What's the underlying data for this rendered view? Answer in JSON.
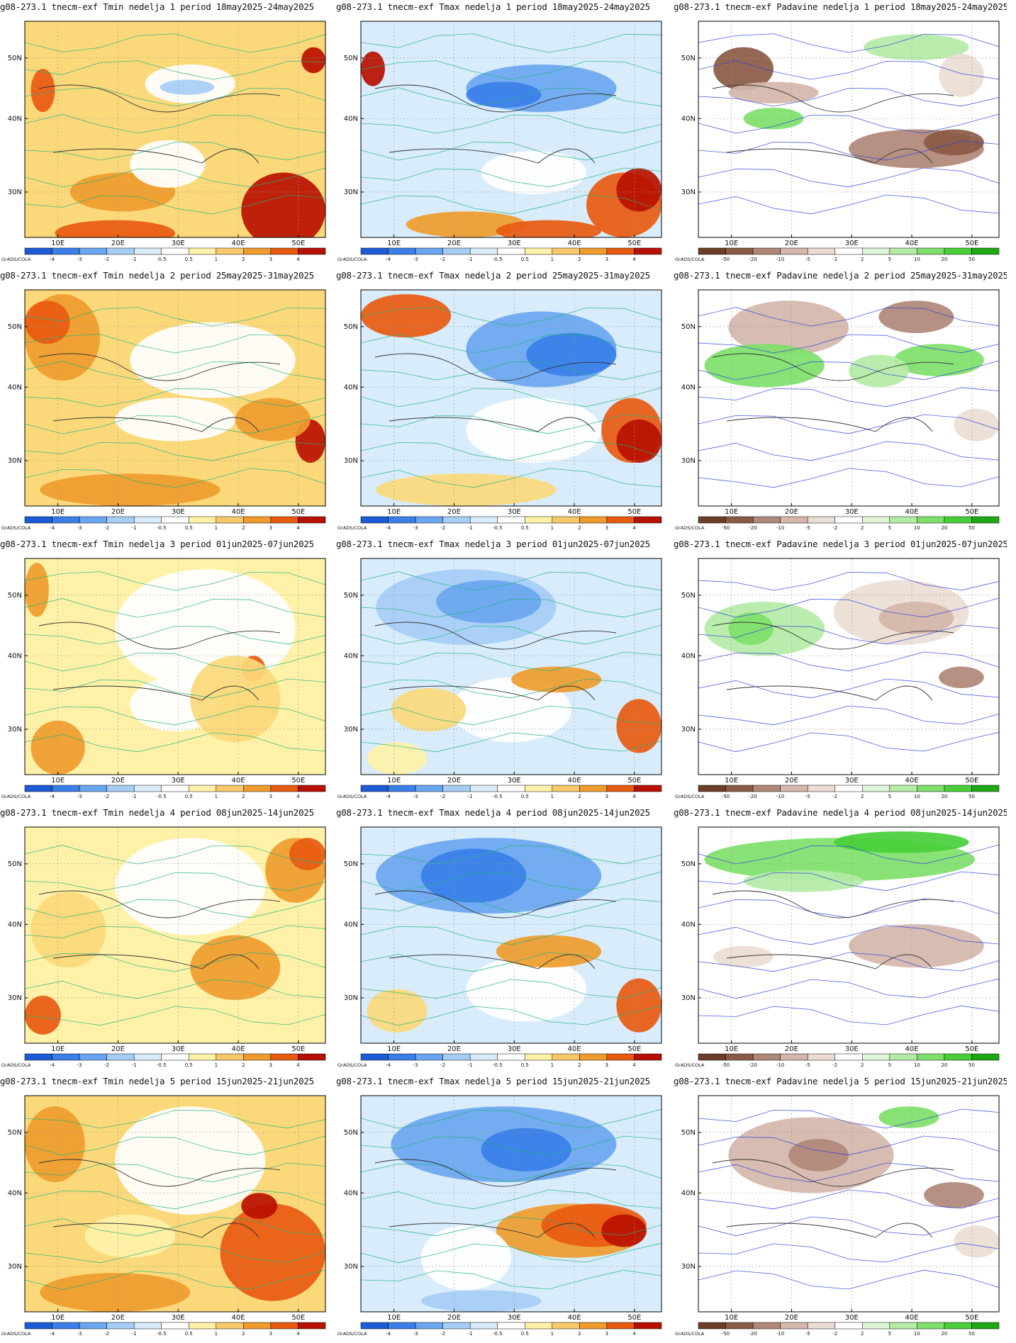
{
  "figure": {
    "credit": "GrADS/COLA",
    "lat_labels": [
      "50N",
      "40N",
      "30N"
    ],
    "lon_labels": [
      "10E",
      "20E",
      "30E",
      "40E",
      "50E"
    ],
    "temp_colorbar": {
      "labels": [
        "-4",
        "-3",
        "-2",
        "-1",
        "-0.5",
        "0.5",
        "1",
        "2",
        "3",
        "4"
      ],
      "colors": [
        "#1c5bd6",
        "#3a7fe8",
        "#6aa6f0",
        "#a6cdf6",
        "#d8ecfb",
        "#ffffff",
        "#fff2a8",
        "#f8c96a",
        "#ef9c2c",
        "#e85a10",
        "#b81000"
      ]
    },
    "precip_colorbar": {
      "labels": [
        "-50",
        "-20",
        "-10",
        "-5",
        "-2",
        "2",
        "5",
        "10",
        "20",
        "50"
      ],
      "colors": [
        "#6b3d2a",
        "#8b5a45",
        "#b08878",
        "#d4b6aa",
        "#ecddd4",
        "#ffffff",
        "#dff5d8",
        "#b4eca6",
        "#7ee06a",
        "#48cf38",
        "#1fa814"
      ]
    },
    "rows": [
      {
        "week": "1",
        "titles": [
          "g08-273.1 tnecm-exf Tmin nedelja 1 period 18may2025-24may2025",
          "g08-273.1 tnecm-exf Tmax nedelja 1 period 18may2025-24may2025",
          "g08-273.1 tnecm-exf Padavine nedelja 1 period 18may2025-24may2025"
        ],
        "maps": [
          {
            "base": "#fbd97a",
            "blobs": [
              [
                "#ef9c2c",
                0.15,
                0.7,
                0.35,
                0.18
              ],
              [
                "#e85a10",
                0.1,
                0.92,
                0.4,
                0.12
              ],
              [
                "#b81000",
                0.72,
                0.7,
                0.28,
                0.35
              ],
              [
                "#ffffff",
                0.35,
                0.55,
                0.25,
                0.22
              ],
              [
                "#ffffff",
                0.4,
                0.2,
                0.3,
                0.18
              ],
              [
                "#a6cdf6",
                0.45,
                0.27,
                0.18,
                0.07
              ],
              [
                "#e85a10",
                0.02,
                0.22,
                0.08,
                0.2
              ],
              [
                "#b81000",
                0.92,
                0.12,
                0.08,
                0.12
              ]
            ]
          },
          {
            "base": "#d8ecfb",
            "blobs": [
              [
                "#6aa6f0",
                0.35,
                0.2,
                0.5,
                0.22
              ],
              [
                "#3a7fe8",
                0.35,
                0.28,
                0.25,
                0.12
              ],
              [
                "#ffffff",
                0.4,
                0.6,
                0.35,
                0.2
              ],
              [
                "#e85a10",
                0.75,
                0.7,
                0.25,
                0.3
              ],
              [
                "#b81000",
                0.85,
                0.68,
                0.15,
                0.2
              ],
              [
                "#ef9c2c",
                0.15,
                0.88,
                0.4,
                0.12
              ],
              [
                "#b81000",
                0.0,
                0.14,
                0.08,
                0.16
              ],
              [
                "#e85a10",
                0.45,
                0.92,
                0.35,
                0.1
              ]
            ]
          },
          {
            "base": "#ffffff",
            "blobs": [
              [
                "#8b5a45",
                0.05,
                0.12,
                0.2,
                0.2
              ],
              [
                "#d4b6aa",
                0.1,
                0.28,
                0.3,
                0.1
              ],
              [
                "#b4eca6",
                0.55,
                0.06,
                0.35,
                0.12
              ],
              [
                "#7ee06a",
                0.15,
                0.4,
                0.2,
                0.1
              ],
              [
                "#b08878",
                0.5,
                0.5,
                0.45,
                0.18
              ],
              [
                "#8b5a45",
                0.75,
                0.5,
                0.2,
                0.12
              ],
              [
                "#ecddd4",
                0.8,
                0.15,
                0.15,
                0.2
              ]
            ]
          }
        ]
      },
      {
        "week": "2",
        "titles": [
          "g08-273.1 tnecm-exf Tmin nedelja 2 period 25may2025-31may2025",
          "g08-273.1 tnecm-exf Tmax nedelja 2 period 25may2025-31may2025",
          "g08-273.1 tnecm-exf Padavine nedelja 2 period 25may2025-31may2025"
        ],
        "maps": [
          {
            "base": "#fbd97a",
            "blobs": [
              [
                "#ef9c2c",
                0.0,
                0.02,
                0.25,
                0.4
              ],
              [
                "#e85a10",
                0.0,
                0.05,
                0.15,
                0.2
              ],
              [
                "#ffffff",
                0.35,
                0.15,
                0.55,
                0.35
              ],
              [
                "#ffffff",
                0.3,
                0.5,
                0.4,
                0.2
              ],
              [
                "#ef9c2c",
                0.05,
                0.85,
                0.6,
                0.15
              ],
              [
                "#b81000",
                0.9,
                0.6,
                0.1,
                0.2
              ],
              [
                "#ef9c2c",
                0.7,
                0.5,
                0.25,
                0.2
              ]
            ]
          },
          {
            "base": "#d8ecfb",
            "blobs": [
              [
                "#e85a10",
                0.0,
                0.02,
                0.3,
                0.2
              ],
              [
                "#6aa6f0",
                0.35,
                0.1,
                0.5,
                0.35
              ],
              [
                "#3a7fe8",
                0.55,
                0.2,
                0.3,
                0.2
              ],
              [
                "#ffffff",
                0.35,
                0.5,
                0.45,
                0.3
              ],
              [
                "#fbd97a",
                0.05,
                0.85,
                0.6,
                0.15
              ],
              [
                "#e85a10",
                0.8,
                0.5,
                0.2,
                0.3
              ],
              [
                "#b81000",
                0.85,
                0.6,
                0.15,
                0.2
              ]
            ]
          },
          {
            "base": "#ffffff",
            "blobs": [
              [
                "#d4b6aa",
                0.1,
                0.05,
                0.4,
                0.25
              ],
              [
                "#b08878",
                0.6,
                0.05,
                0.25,
                0.15
              ],
              [
                "#7ee06a",
                0.02,
                0.25,
                0.4,
                0.2
              ],
              [
                "#7ee06a",
                0.65,
                0.25,
                0.3,
                0.15
              ],
              [
                "#b4eca6",
                0.5,
                0.3,
                0.2,
                0.15
              ],
              [
                "#ecddd4",
                0.85,
                0.55,
                0.15,
                0.15
              ]
            ]
          }
        ]
      },
      {
        "week": "3",
        "titles": [
          "g08-273.1 tnecm-exf Tmin nedelja 3 period 01jun2025-07jun2025",
          "g08-273.1 tnecm-exf Tmax nedelja 3 period 01jun2025-07jun2025",
          "g08-273.1 tnecm-exf Padavine nedelja 3 period 01jun2025-07jun2025"
        ],
        "maps": [
          {
            "base": "#fff2a8",
            "blobs": [
              [
                "#ffffff",
                0.3,
                0.05,
                0.6,
                0.55
              ],
              [
                "#ffffff",
                0.35,
                0.55,
                0.3,
                0.25
              ],
              [
                "#ef9c2c",
                0.0,
                0.02,
                0.08,
                0.25
              ],
              [
                "#ef9c2c",
                0.02,
                0.75,
                0.18,
                0.25
              ],
              [
                "#e85a10",
                0.72,
                0.45,
                0.08,
                0.12
              ],
              [
                "#fbd97a",
                0.55,
                0.45,
                0.3,
                0.4
              ]
            ]
          },
          {
            "base": "#d8ecfb",
            "blobs": [
              [
                "#a6cdf6",
                0.05,
                0.05,
                0.6,
                0.35
              ],
              [
                "#6aa6f0",
                0.25,
                0.1,
                0.35,
                0.2
              ],
              [
                "#ffffff",
                0.3,
                0.55,
                0.4,
                0.3
              ],
              [
                "#fbd97a",
                0.1,
                0.6,
                0.25,
                0.2
              ],
              [
                "#ef9c2c",
                0.5,
                0.5,
                0.3,
                0.12
              ],
              [
                "#e85a10",
                0.85,
                0.65,
                0.15,
                0.25
              ],
              [
                "#fff2a8",
                0.02,
                0.85,
                0.2,
                0.15
              ]
            ]
          },
          {
            "base": "#ffffff",
            "blobs": [
              [
                "#b4eca6",
                0.02,
                0.2,
                0.4,
                0.25
              ],
              [
                "#7ee06a",
                0.1,
                0.25,
                0.15,
                0.15
              ],
              [
                "#ecddd4",
                0.45,
                0.1,
                0.45,
                0.3
              ],
              [
                "#d4b6aa",
                0.6,
                0.2,
                0.25,
                0.15
              ],
              [
                "#b08878",
                0.8,
                0.5,
                0.15,
                0.1
              ]
            ]
          }
        ]
      },
      {
        "week": "4",
        "titles": [
          "g08-273.1 tnecm-exf Tmin nedelja 4 period 08jun2025-14jun2025",
          "g08-273.1 tnecm-exf Tmax nedelja 4 period 08jun2025-14jun2025",
          "g08-273.1 tnecm-exf Padavine nedelja 4 period 08jun2025-14jun2025"
        ],
        "maps": [
          {
            "base": "#fff2a8",
            "blobs": [
              [
                "#ffffff",
                0.3,
                0.05,
                0.5,
                0.45
              ],
              [
                "#ef9c2c",
                0.8,
                0.05,
                0.2,
                0.3
              ],
              [
                "#e85a10",
                0.88,
                0.05,
                0.12,
                0.15
              ],
              [
                "#ef9c2c",
                0.55,
                0.5,
                0.3,
                0.3
              ],
              [
                "#e85a10",
                0.0,
                0.78,
                0.12,
                0.18
              ],
              [
                "#fbd97a",
                0.02,
                0.3,
                0.25,
                0.35
              ]
            ]
          },
          {
            "base": "#d8ecfb",
            "blobs": [
              [
                "#6aa6f0",
                0.05,
                0.05,
                0.75,
                0.35
              ],
              [
                "#3a7fe8",
                0.2,
                0.1,
                0.35,
                0.25
              ],
              [
                "#ffffff",
                0.35,
                0.6,
                0.4,
                0.3
              ],
              [
                "#ef9c2c",
                0.45,
                0.5,
                0.35,
                0.15
              ],
              [
                "#e85a10",
                0.85,
                0.7,
                0.15,
                0.25
              ],
              [
                "#fbd97a",
                0.02,
                0.75,
                0.2,
                0.2
              ]
            ]
          },
          {
            "base": "#ffffff",
            "blobs": [
              [
                "#7ee06a",
                0.02,
                0.05,
                0.9,
                0.2
              ],
              [
                "#48cf38",
                0.45,
                0.02,
                0.45,
                0.1
              ],
              [
                "#b4eca6",
                0.15,
                0.2,
                0.4,
                0.1
              ],
              [
                "#d4b6aa",
                0.5,
                0.45,
                0.45,
                0.2
              ],
              [
                "#ecddd4",
                0.05,
                0.55,
                0.2,
                0.1
              ]
            ]
          }
        ]
      },
      {
        "week": "5",
        "titles": [
          "g08-273.1 tnecm-exf Tmin nedelja 5 period 15jun2025-21jun2025",
          "g08-273.1 tnecm-exf Tmax nedelja 5 period 15jun2025-21jun2025",
          "g08-273.1 tnecm-exf Padavine nedelja 5 period 15jun2025-21jun2025"
        ],
        "maps": [
          {
            "base": "#fbd97a",
            "blobs": [
              [
                "#ffffff",
                0.3,
                0.05,
                0.5,
                0.5
              ],
              [
                "#ef9c2c",
                0.0,
                0.05,
                0.2,
                0.35
              ],
              [
                "#e85a10",
                0.65,
                0.5,
                0.35,
                0.45
              ],
              [
                "#b81000",
                0.72,
                0.45,
                0.12,
                0.12
              ],
              [
                "#ef9c2c",
                0.05,
                0.82,
                0.5,
                0.18
              ],
              [
                "#fff2a8",
                0.2,
                0.55,
                0.3,
                0.2
              ]
            ]
          },
          {
            "base": "#d8ecfb",
            "blobs": [
              [
                "#6aa6f0",
                0.1,
                0.05,
                0.75,
                0.35
              ],
              [
                "#3a7fe8",
                0.4,
                0.15,
                0.3,
                0.2
              ],
              [
                "#ef9c2c",
                0.45,
                0.5,
                0.5,
                0.25
              ],
              [
                "#e85a10",
                0.6,
                0.5,
                0.35,
                0.2
              ],
              [
                "#b81000",
                0.8,
                0.55,
                0.15,
                0.15
              ],
              [
                "#ffffff",
                0.2,
                0.6,
                0.3,
                0.3
              ],
              [
                "#a6cdf6",
                0.2,
                0.9,
                0.4,
                0.1
              ]
            ]
          },
          {
            "base": "#ffffff",
            "blobs": [
              [
                "#d4b6aa",
                0.1,
                0.1,
                0.55,
                0.35
              ],
              [
                "#b08878",
                0.3,
                0.2,
                0.2,
                0.15
              ],
              [
                "#7ee06a",
                0.6,
                0.05,
                0.2,
                0.1
              ],
              [
                "#b08878",
                0.75,
                0.4,
                0.2,
                0.12
              ],
              [
                "#ecddd4",
                0.85,
                0.6,
                0.15,
                0.15
              ]
            ]
          }
        ]
      }
    ]
  }
}
